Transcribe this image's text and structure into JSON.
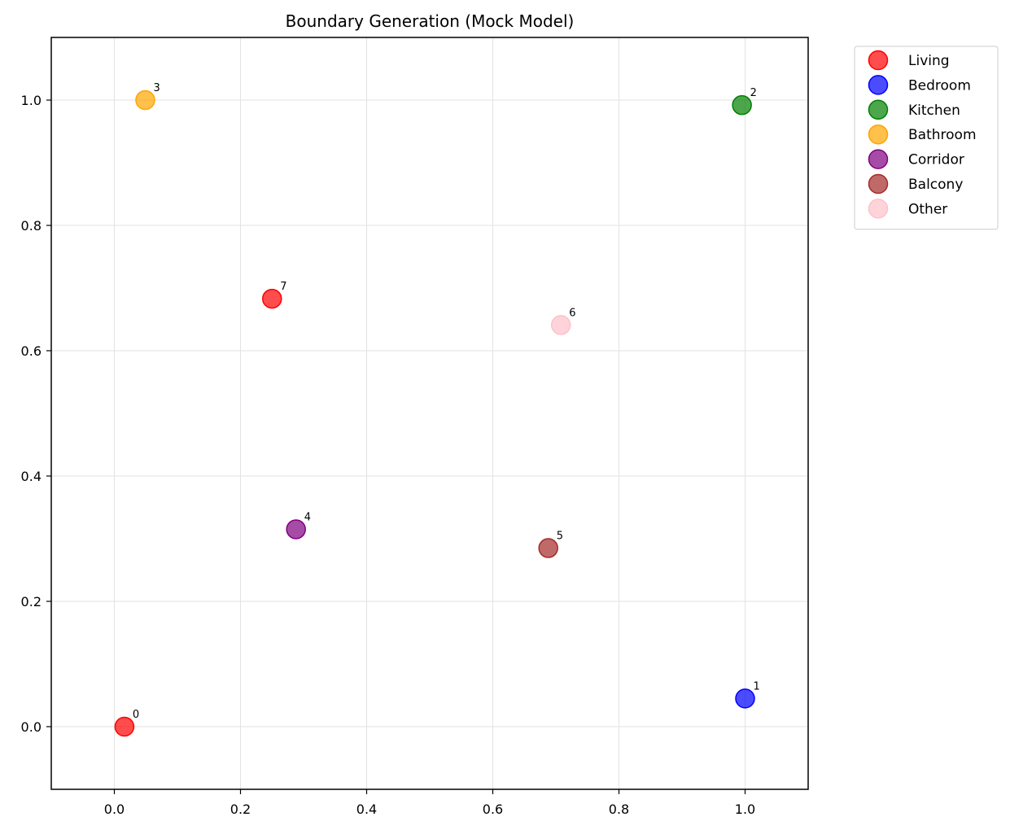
{
  "chart_data": {
    "type": "scatter",
    "title": "Boundary Generation (Mock Model)",
    "xlabel": "",
    "ylabel": "",
    "xlim": [
      -0.1,
      1.1
    ],
    "ylim": [
      -0.1,
      1.1
    ],
    "xticks": [
      "0.0",
      "0.2",
      "0.4",
      "0.6",
      "0.8",
      "1.0"
    ],
    "yticks": [
      "0.0",
      "0.2",
      "0.4",
      "0.6",
      "0.8",
      "1.0"
    ],
    "grid": true,
    "legend_position": "outside top-right",
    "series": [
      {
        "name": "Living",
        "color": "#ff0000"
      },
      {
        "name": "Bedroom",
        "color": "#0000ff"
      },
      {
        "name": "Kitchen",
        "color": "#008000"
      },
      {
        "name": "Bathroom",
        "color": "#ffa500"
      },
      {
        "name": "Corridor",
        "color": "#800080"
      },
      {
        "name": "Balcony",
        "color": "#a52a2a"
      },
      {
        "name": "Other",
        "color": "#ffc0cb"
      }
    ],
    "points": [
      {
        "label": "0",
        "x": 0.016,
        "y": 0.0,
        "series": "Living"
      },
      {
        "label": "1",
        "x": 1.0,
        "y": 0.045,
        "series": "Bedroom"
      },
      {
        "label": "2",
        "x": 0.995,
        "y": 0.992,
        "series": "Kitchen"
      },
      {
        "label": "3",
        "x": 0.049,
        "y": 1.0,
        "series": "Bathroom"
      },
      {
        "label": "4",
        "x": 0.288,
        "y": 0.315,
        "series": "Corridor"
      },
      {
        "label": "5",
        "x": 0.688,
        "y": 0.285,
        "series": "Balcony"
      },
      {
        "label": "6",
        "x": 0.708,
        "y": 0.641,
        "series": "Other"
      },
      {
        "label": "7",
        "x": 0.25,
        "y": 0.683,
        "series": "Living"
      }
    ]
  }
}
